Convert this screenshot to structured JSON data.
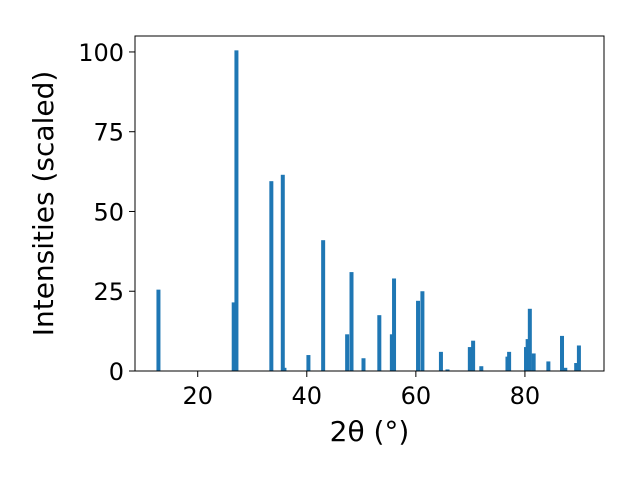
{
  "chart_data": {
    "type": "bar",
    "xlabel": "2θ (°)",
    "ylabel": "Intensities (scaled)",
    "xlim": [
      8.5,
      94.5
    ],
    "ylim": [
      0,
      105
    ],
    "xticks": [
      20,
      40,
      60,
      80
    ],
    "yticks": [
      0,
      25,
      50,
      75,
      100
    ],
    "grid": false,
    "legend": "none",
    "bar_color": "#1f77b4",
    "series": [
      {
        "x": [
          12.8,
          26.6,
          27.1,
          33.5,
          35.6,
          35.9,
          40.3,
          43.0,
          47.4,
          48.2,
          50.4,
          53.3,
          55.6,
          56.0,
          60.4,
          61.2,
          64.6,
          65.8,
          69.9,
          70.5,
          72.0,
          76.8,
          77.1,
          80.2,
          80.5,
          80.9,
          81.6,
          84.3,
          86.8,
          87.4,
          89.4,
          89.9
        ],
        "values": [
          25.5,
          21.5,
          100.5,
          59.5,
          61.5,
          1.0,
          5.0,
          41.0,
          11.5,
          31.0,
          4.0,
          17.5,
          11.5,
          29.0,
          22.0,
          25.0,
          6.0,
          0.5,
          7.5,
          9.5,
          1.5,
          4.5,
          6.0,
          7.5,
          10.0,
          19.5,
          5.5,
          3.0,
          11.0,
          1.0,
          2.5,
          8.0
        ]
      }
    ]
  }
}
